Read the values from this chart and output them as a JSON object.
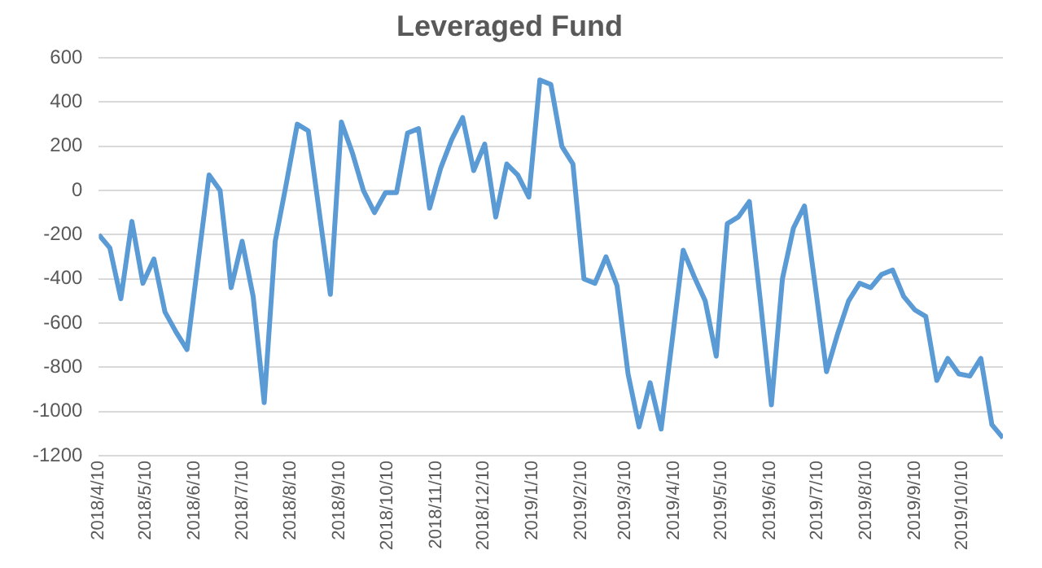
{
  "chart_data": {
    "type": "line",
    "title": "Leveraged Fund",
    "x": [
      "2018-04-10",
      "2018-04-17",
      "2018-04-24",
      "2018-05-01",
      "2018-05-08",
      "2018-05-15",
      "2018-05-22",
      "2018-05-29",
      "2018-06-05",
      "2018-06-12",
      "2018-06-19",
      "2018-06-26",
      "2018-07-03",
      "2018-07-10",
      "2018-07-17",
      "2018-07-24",
      "2018-07-31",
      "2018-08-07",
      "2018-08-14",
      "2018-08-21",
      "2018-08-28",
      "2018-09-04",
      "2018-09-11",
      "2018-09-18",
      "2018-09-25",
      "2018-10-02",
      "2018-10-09",
      "2018-10-16",
      "2018-10-23",
      "2018-10-30",
      "2018-11-06",
      "2018-11-13",
      "2018-11-20",
      "2018-11-27",
      "2018-12-04",
      "2018-12-11",
      "2018-12-18",
      "2018-12-25",
      "2019-01-01",
      "2019-01-08",
      "2019-01-15",
      "2019-01-22",
      "2019-01-29",
      "2019-02-05",
      "2019-02-12",
      "2019-02-19",
      "2019-02-26",
      "2019-03-05",
      "2019-03-12",
      "2019-03-19",
      "2019-03-26",
      "2019-04-02",
      "2019-04-09",
      "2019-04-16",
      "2019-04-23",
      "2019-04-30",
      "2019-05-07",
      "2019-05-14",
      "2019-05-21",
      "2019-05-28",
      "2019-06-04",
      "2019-06-11",
      "2019-06-18",
      "2019-06-25",
      "2019-07-02",
      "2019-07-09",
      "2019-07-16",
      "2019-07-23",
      "2019-07-30",
      "2019-08-06",
      "2019-08-13",
      "2019-08-20",
      "2019-08-27",
      "2019-09-03",
      "2019-09-10",
      "2019-09-17",
      "2019-09-24",
      "2019-10-01",
      "2019-10-08",
      "2019-10-15",
      "2019-10-22",
      "2019-10-29",
      "2019-11-05"
    ],
    "series": [
      {
        "color": "#5b9bd5",
        "values": [
          -200,
          -260,
          -490,
          -140,
          -420,
          -310,
          -550,
          -640,
          -720,
          -325,
          70,
          0,
          -440,
          -230,
          -480,
          -960,
          -230,
          30,
          300,
          270,
          -100,
          -470,
          310,
          170,
          0,
          -100,
          -10,
          -10,
          260,
          280,
          -80,
          100,
          230,
          330,
          90,
          210,
          -120,
          120,
          70,
          -30,
          500,
          480,
          200,
          120,
          -400,
          -420,
          -300,
          -430,
          -830,
          -1070,
          -870,
          -1080,
          -680,
          -270,
          -390,
          -500,
          -750,
          -150,
          -120,
          -50,
          -500,
          -970,
          -400,
          -170,
          -70,
          -440,
          -820,
          -650,
          -500,
          -420,
          -440,
          -380,
          -360,
          -480,
          -540,
          -570,
          -860,
          -760,
          -830,
          -840,
          -760,
          -1060,
          -1120
        ]
      }
    ],
    "xlim": [
      "2018-04-10",
      "2019-11-05"
    ],
    "xticks": [
      {
        "value": "2018-04-10",
        "label": "2018/4/10"
      },
      {
        "value": "2018-05-10",
        "label": "2018/5/10"
      },
      {
        "value": "2018-06-10",
        "label": "2018/6/10"
      },
      {
        "value": "2018-07-10",
        "label": "2018/7/10"
      },
      {
        "value": "2018-08-10",
        "label": "2018/8/10"
      },
      {
        "value": "2018-09-10",
        "label": "2018/9/10"
      },
      {
        "value": "2018-10-10",
        "label": "2018/10/10"
      },
      {
        "value": "2018-11-10",
        "label": "2018/11/10"
      },
      {
        "value": "2018-12-10",
        "label": "2018/12/10"
      },
      {
        "value": "2019-01-10",
        "label": "2019/1/10"
      },
      {
        "value": "2019-02-10",
        "label": "2019/2/10"
      },
      {
        "value": "2019-03-10",
        "label": "2019/3/10"
      },
      {
        "value": "2019-04-10",
        "label": "2019/4/10"
      },
      {
        "value": "2019-05-10",
        "label": "2019/5/10"
      },
      {
        "value": "2019-06-10",
        "label": "2019/6/10"
      },
      {
        "value": "2019-07-10",
        "label": "2019/7/10"
      },
      {
        "value": "2019-08-10",
        "label": "2019/8/10"
      },
      {
        "value": "2019-09-10",
        "label": "2019/9/10"
      },
      {
        "value": "2019-10-10",
        "label": "2019/10/10"
      }
    ],
    "ylim": [
      -1200,
      600
    ],
    "yticks": [
      -1200,
      -1000,
      -800,
      -600,
      -400,
      -200,
      0,
      200,
      400,
      600
    ],
    "grid": "y",
    "legend": false,
    "marker": "none",
    "line_style": "solid"
  }
}
